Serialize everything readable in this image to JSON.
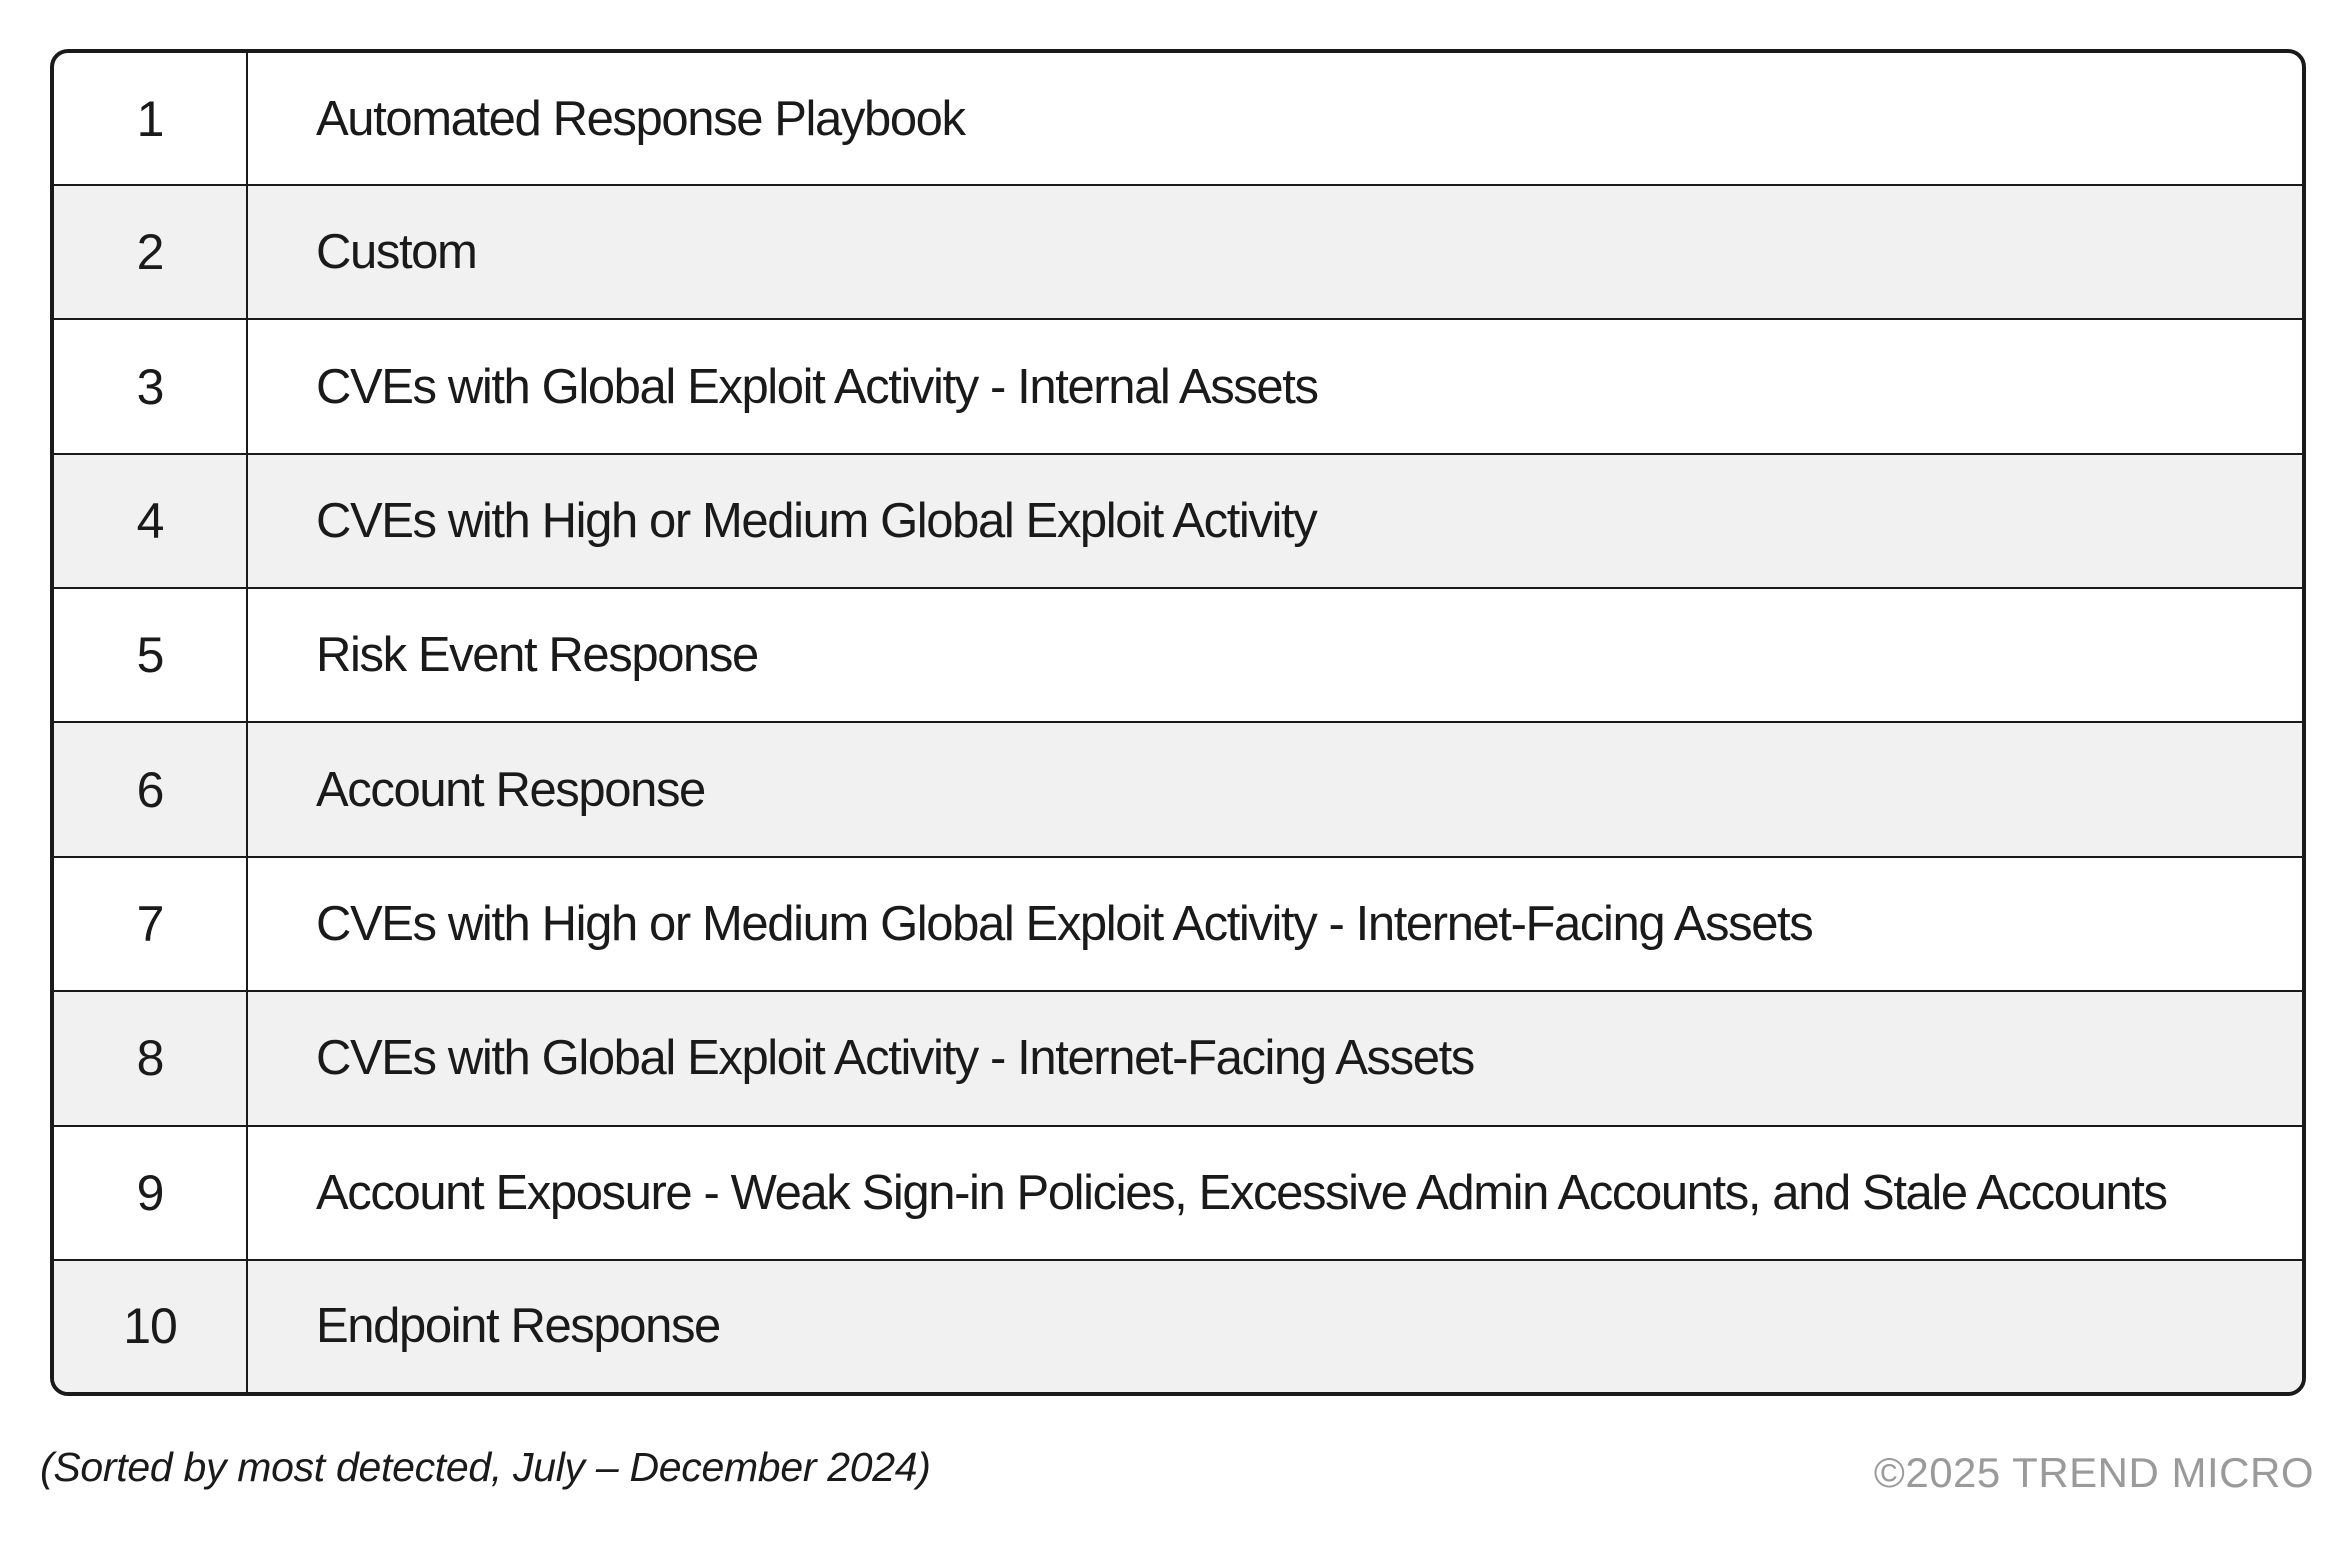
{
  "table": {
    "rows": [
      {
        "rank": "1",
        "name": "Automated Response Playbook"
      },
      {
        "rank": "2",
        "name": "Custom"
      },
      {
        "rank": "3",
        "name": "CVEs with Global Exploit Activity - Internal Assets"
      },
      {
        "rank": "4",
        "name": "CVEs with High or Medium Global Exploit Activity"
      },
      {
        "rank": "5",
        "name": "Risk Event Response"
      },
      {
        "rank": "6",
        "name": "Account Response"
      },
      {
        "rank": "7",
        "name": "CVEs with High or Medium Global Exploit Activity - Internet-Facing Assets"
      },
      {
        "rank": "8",
        "name": "CVEs with Global Exploit Activity - Internet-Facing Assets"
      },
      {
        "rank": "9",
        "name": "Account Exposure - Weak Sign-in Policies, Excessive Admin Accounts, and Stale Accounts"
      },
      {
        "rank": "10",
        "name": "Endpoint Response"
      }
    ]
  },
  "caption": "(Sorted by most detected, July – December 2024)",
  "copyright": "©2025 TREND MICRO",
  "colors": {
    "border": "#1a1a1a",
    "alt_row": "#f0f1f0",
    "copyright_text": "#9a9a9a"
  }
}
